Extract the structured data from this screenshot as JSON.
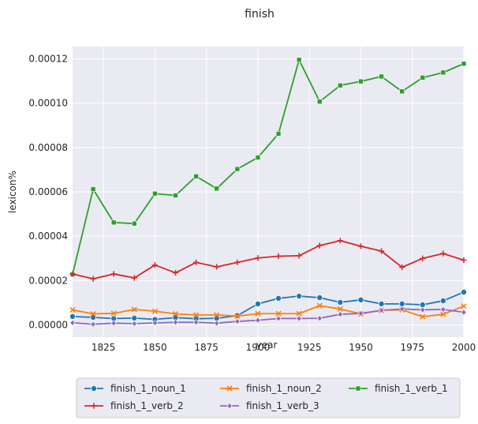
{
  "chart_data": {
    "type": "line",
    "title": "finish",
    "xlabel": "year",
    "ylabel": "lexicon%",
    "xlim": [
      1810,
      2000
    ],
    "ylim": [
      -5.5e-06,
      0.0001255
    ],
    "x_ticks": [
      1825,
      1850,
      1875,
      1900,
      1925,
      1950,
      1975,
      2000
    ],
    "y_ticks": [
      0,
      2e-05,
      4e-05,
      6e-05,
      8e-05,
      0.0001,
      0.00012
    ],
    "y_tick_labels": [
      "0.00000",
      "0.00002",
      "0.00004",
      "0.00006",
      "0.00008",
      "0.00010",
      "0.00012"
    ],
    "grid": true,
    "legend_position": "bottom",
    "x": [
      1810,
      1820,
      1830,
      1840,
      1850,
      1860,
      1870,
      1880,
      1890,
      1900,
      1910,
      1920,
      1930,
      1940,
      1950,
      1960,
      1970,
      1980,
      1990,
      2000
    ],
    "series": [
      {
        "name": "finish_1_noun_1",
        "color": "#1f77b4",
        "marker": "circle",
        "values": [
          3.8e-06,
          3.4e-06,
          2.9e-06,
          3.1e-06,
          2.5e-06,
          3.3e-06,
          2.8e-06,
          3e-06,
          4.2e-06,
          9.5e-06,
          1.2e-05,
          1.3e-05,
          1.23e-05,
          1.02e-05,
          1.13e-05,
          9.5e-06,
          9.5e-06,
          9.1e-06,
          1.09e-05,
          1.48e-05
        ]
      },
      {
        "name": "finish_1_noun_2",
        "color": "#ff7f0e",
        "marker": "x",
        "values": [
          6.8e-06,
          5e-06,
          5.2e-06,
          7e-06,
          6.2e-06,
          5e-06,
          4.5e-06,
          4.5e-06,
          4e-06,
          5.1e-06,
          5.1e-06,
          5.1e-06,
          8.7e-06,
          7.2e-06,
          5e-06,
          6.6e-06,
          6.8e-06,
          3.7e-06,
          4.8e-06,
          8.5e-06
        ]
      },
      {
        "name": "finish_1_verb_1",
        "color": "#2ca02c",
        "marker": "square",
        "values": [
          2.28e-05,
          6.12e-05,
          4.62e-05,
          4.57e-05,
          5.92e-05,
          5.84e-05,
          6.7e-05,
          6.15e-05,
          7.03e-05,
          7.55e-05,
          8.62e-05,
          0.0001195,
          0.0001007,
          0.000108,
          0.0001098,
          0.000112,
          0.0001053,
          0.0001115,
          0.0001138,
          0.0001178
        ]
      },
      {
        "name": "finish_1_verb_2",
        "color": "#d62728",
        "marker": "plus",
        "values": [
          2.3e-05,
          2.08e-05,
          2.3e-05,
          2.12e-05,
          2.7e-05,
          2.35e-05,
          2.82e-05,
          2.62e-05,
          2.82e-05,
          3.02e-05,
          3.1e-05,
          3.12e-05,
          3.58e-05,
          3.8e-05,
          3.55e-05,
          3.33e-05,
          2.6e-05,
          3e-05,
          3.22e-05,
          2.92e-05
        ]
      },
      {
        "name": "finish_1_verb_3",
        "color": "#9467bd",
        "marker": "diamond",
        "values": [
          1e-06,
          3e-07,
          8e-07,
          6e-07,
          9e-07,
          1.2e-06,
          1.2e-06,
          8e-07,
          1.6e-06,
          2.1e-06,
          2.9e-06,
          2.9e-06,
          3e-06,
          4.8e-06,
          5.2e-06,
          6.6e-06,
          7.2e-06,
          6.8e-06,
          7e-06,
          5.7e-06
        ]
      }
    ]
  }
}
